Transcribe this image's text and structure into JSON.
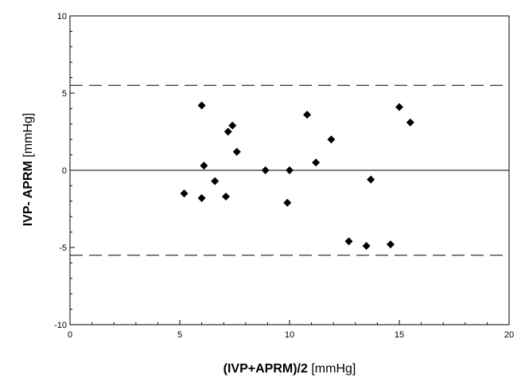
{
  "chart_data": {
    "type": "scatter",
    "title": "",
    "xlabel": {
      "bold": "(IVP+APRM)/2",
      "unit": " [mmHg]"
    },
    "ylabel": {
      "bold": "IVP- APRM",
      "unit": " [mmHg]"
    },
    "xlim": [
      0,
      20
    ],
    "ylim": [
      -10,
      10
    ],
    "x_ticks": [
      "0",
      "5",
      "10",
      "15",
      "20"
    ],
    "y_ticks": [
      "-10",
      "-5",
      "0",
      "5",
      "10"
    ],
    "grid": false,
    "legend": "none",
    "reference_lines": [
      {
        "y": 5.5,
        "style": "dashed"
      },
      {
        "y": 0,
        "style": "solid"
      },
      {
        "y": -5.5,
        "style": "dashed"
      }
    ],
    "points": [
      {
        "x": 5.2,
        "y": -1.5
      },
      {
        "x": 6.0,
        "y": 4.2
      },
      {
        "x": 6.1,
        "y": 0.3
      },
      {
        "x": 6.0,
        "y": -1.8
      },
      {
        "x": 6.6,
        "y": -0.7
      },
      {
        "x": 7.1,
        "y": -1.7
      },
      {
        "x": 7.2,
        "y": 2.5
      },
      {
        "x": 7.4,
        "y": 2.9
      },
      {
        "x": 7.6,
        "y": 1.2
      },
      {
        "x": 8.9,
        "y": 0.0
      },
      {
        "x": 9.9,
        "y": -2.1
      },
      {
        "x": 10.0,
        "y": 0.0
      },
      {
        "x": 10.8,
        "y": 3.6
      },
      {
        "x": 11.2,
        "y": 0.5
      },
      {
        "x": 11.9,
        "y": 2.0
      },
      {
        "x": 12.7,
        "y": -4.6
      },
      {
        "x": 13.5,
        "y": -4.9
      },
      {
        "x": 13.7,
        "y": -0.6
      },
      {
        "x": 14.6,
        "y": -4.8
      },
      {
        "x": 15.0,
        "y": 4.1
      },
      {
        "x": 15.5,
        "y": 3.1
      }
    ],
    "colors": {
      "marker": "#000000",
      "line": "#000000",
      "background": "#ffffff"
    }
  }
}
